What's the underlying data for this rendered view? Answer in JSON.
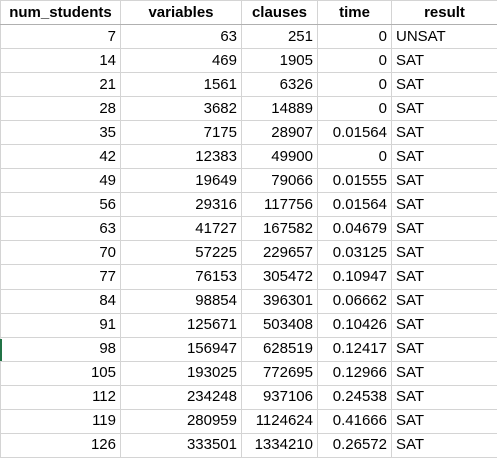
{
  "table": {
    "headers": [
      "num_students",
      "variables",
      "clauses",
      "time",
      "result"
    ],
    "rows": [
      [
        "7",
        "63",
        "251",
        "0",
        "UNSAT"
      ],
      [
        "14",
        "469",
        "1905",
        "0",
        "SAT"
      ],
      [
        "21",
        "1561",
        "6326",
        "0",
        "SAT"
      ],
      [
        "28",
        "3682",
        "14889",
        "0",
        "SAT"
      ],
      [
        "35",
        "7175",
        "28907",
        "0.01564",
        "SAT"
      ],
      [
        "42",
        "12383",
        "49900",
        "0",
        "SAT"
      ],
      [
        "49",
        "19649",
        "79066",
        "0.01555",
        "SAT"
      ],
      [
        "56",
        "29316",
        "117756",
        "0.01564",
        "SAT"
      ],
      [
        "63",
        "41727",
        "167582",
        "0.04679",
        "SAT"
      ],
      [
        "70",
        "57225",
        "229657",
        "0.03125",
        "SAT"
      ],
      [
        "77",
        "76153",
        "305472",
        "0.10947",
        "SAT"
      ],
      [
        "84",
        "98854",
        "396301",
        "0.06662",
        "SAT"
      ],
      [
        "91",
        "125671",
        "503408",
        "0.10426",
        "SAT"
      ],
      [
        "98",
        "156947",
        "628519",
        "0.12417",
        "SAT"
      ],
      [
        "105",
        "193025",
        "772695",
        "0.12966",
        "SAT"
      ],
      [
        "112",
        "234248",
        "937106",
        "0.24538",
        "SAT"
      ],
      [
        "119",
        "280959",
        "1124624",
        "0.41666",
        "SAT"
      ],
      [
        "126",
        "333501",
        "1334210",
        "0.26572",
        "SAT"
      ]
    ]
  },
  "colors": {
    "grid": "#d4d4d4",
    "row_marker": "#217346"
  }
}
